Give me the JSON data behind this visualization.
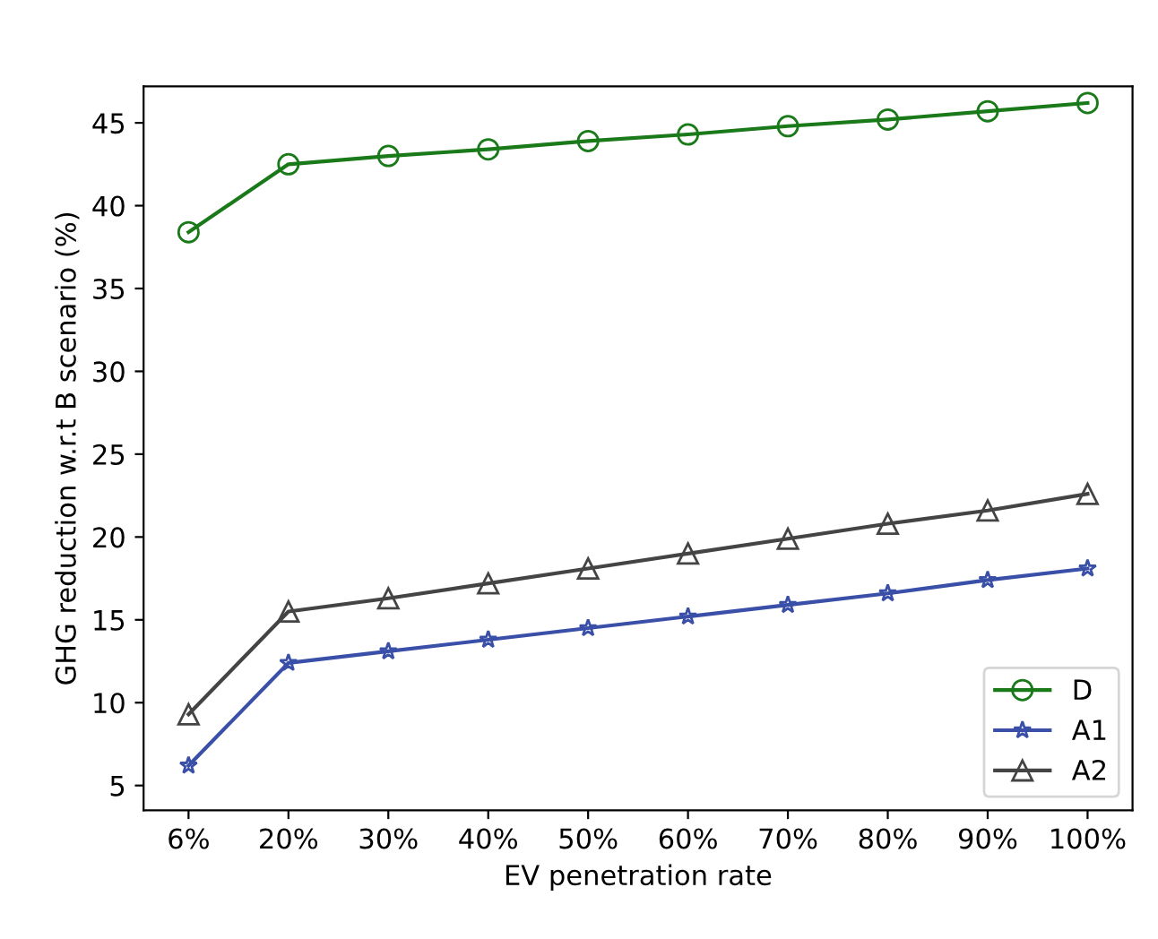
{
  "chart_data": {
    "type": "line",
    "xlabel": "EV penetration rate",
    "ylabel": "GHG reduction w.r.t B scenario (%)",
    "categories": [
      "6%",
      "20%",
      "30%",
      "40%",
      "50%",
      "60%",
      "70%",
      "80%",
      "90%",
      "100%"
    ],
    "series": [
      {
        "name": "D",
        "color": "#1a7a1a",
        "marker": "circle",
        "values": [
          38.4,
          42.5,
          43.0,
          43.4,
          43.9,
          44.3,
          44.8,
          45.2,
          45.7,
          46.2
        ]
      },
      {
        "name": "A1",
        "color": "#3a4fa8",
        "marker": "star",
        "values": [
          6.2,
          12.4,
          13.1,
          13.8,
          14.5,
          15.2,
          15.9,
          16.6,
          17.4,
          18.1
        ]
      },
      {
        "name": "A2",
        "color": "#444444",
        "marker": "triangle",
        "values": [
          9.3,
          15.5,
          16.3,
          17.2,
          18.1,
          19.0,
          19.9,
          20.8,
          21.6,
          22.6
        ]
      }
    ],
    "ylim": [
      3.5,
      47.2
    ],
    "yticks": [
      5,
      10,
      15,
      20,
      25,
      30,
      35,
      40,
      45
    ],
    "grid": false,
    "legend": "bottom right"
  }
}
